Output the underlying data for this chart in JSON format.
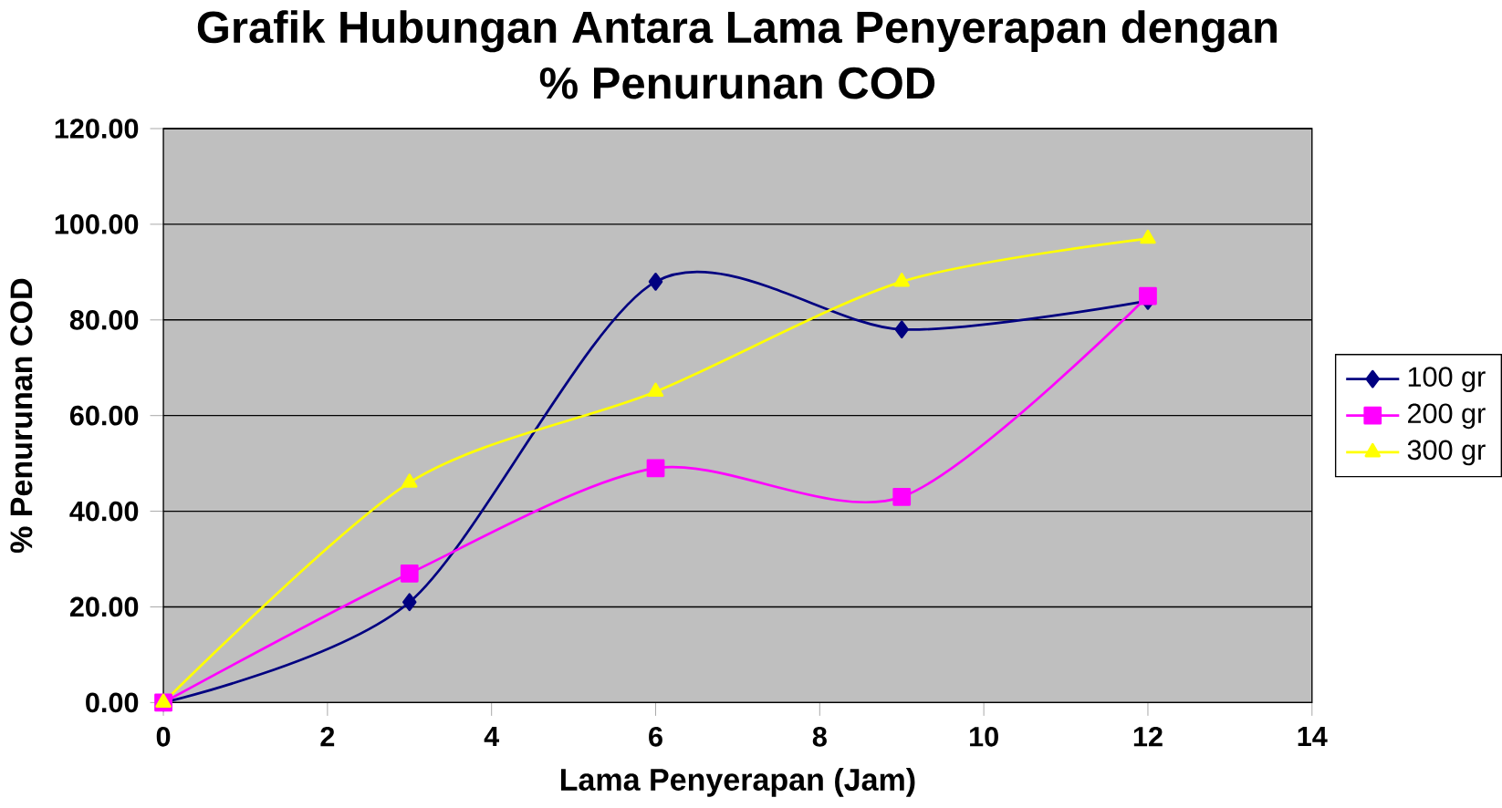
{
  "chart_data": {
    "type": "line",
    "title": "Grafik Hubungan Antara Lama Penyerapan dengan\n% Penurunan COD",
    "xlabel": "Lama Penyerapan (Jam)",
    "ylabel": "% Penurunan COD",
    "x": [
      0,
      3,
      6,
      9,
      12
    ],
    "series": [
      {
        "name": "100 gr",
        "color": "#000080",
        "marker": "diamond",
        "values": [
          0,
          21,
          88,
          78,
          84
        ]
      },
      {
        "name": "200 gr",
        "color": "#ff00ff",
        "marker": "square",
        "values": [
          0,
          27,
          49,
          43,
          85
        ]
      },
      {
        "name": "300 gr",
        "color": "#ffff00",
        "marker": "triangle",
        "values": [
          0,
          46,
          65,
          88,
          97
        ]
      }
    ],
    "xlim": [
      0,
      14
    ],
    "xticks": [
      0,
      2,
      4,
      6,
      8,
      10,
      12,
      14
    ],
    "ylim": [
      0,
      120
    ],
    "yticks": [
      {
        "value": 0,
        "label": "0.00"
      },
      {
        "value": 20,
        "label": "20.00"
      },
      {
        "value": 40,
        "label": "40.00"
      },
      {
        "value": 60,
        "label": "60.00"
      },
      {
        "value": 80,
        "label": "80.00"
      },
      {
        "value": 100,
        "label": "100.00"
      },
      {
        "value": 120,
        "label": "120.00"
      }
    ],
    "grid": "y",
    "legend": "right"
  }
}
